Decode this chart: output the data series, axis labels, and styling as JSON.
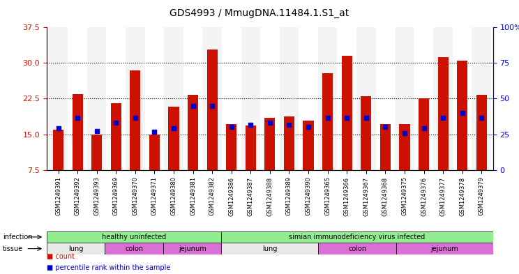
{
  "title": "GDS4993 / MmugDNA.11484.1.S1_at",
  "samples": [
    "GSM1249391",
    "GSM1249392",
    "GSM1249393",
    "GSM1249369",
    "GSM1249370",
    "GSM1249371",
    "GSM1249380",
    "GSM1249381",
    "GSM1249382",
    "GSM1249386",
    "GSM1249387",
    "GSM1249388",
    "GSM1249389",
    "GSM1249390",
    "GSM1249365",
    "GSM1249366",
    "GSM1249367",
    "GSM1249368",
    "GSM1249375",
    "GSM1249376",
    "GSM1249377",
    "GSM1249378",
    "GSM1249379"
  ],
  "counts": [
    16.0,
    23.5,
    14.9,
    21.5,
    28.5,
    15.0,
    20.8,
    23.3,
    32.8,
    17.2,
    16.8,
    18.5,
    18.8,
    17.8,
    27.8,
    31.5,
    23.0,
    17.2,
    17.1,
    22.5,
    31.3,
    30.5,
    23.3
  ],
  "percentiles": [
    16.3,
    18.5,
    15.7,
    17.5,
    18.5,
    15.5,
    16.3,
    21.0,
    21.0,
    16.5,
    17.0,
    17.5,
    17.0,
    16.5,
    18.5,
    18.5,
    18.5,
    16.5,
    15.3,
    16.3,
    18.5,
    19.5,
    18.5
  ],
  "bar_color": "#CC1100",
  "percentile_color": "#0000CC",
  "ylim_left": [
    7.5,
    37.5
  ],
  "ylim_right": [
    0,
    100
  ],
  "yticks_left": [
    7.5,
    15.0,
    22.5,
    30.0,
    37.5
  ],
  "yticks_right": [
    0,
    25,
    50,
    75,
    100
  ],
  "infection_groups": [
    {
      "label": "healthy uninfected",
      "start": 0,
      "end": 9,
      "color": "#90EE90"
    },
    {
      "label": "simian immunodeficiency virus infected",
      "start": 9,
      "end": 23,
      "color": "#90EE90"
    }
  ],
  "tissue_groups": [
    {
      "label": "lung",
      "start": 0,
      "end": 3,
      "color": "#E8E8FF"
    },
    {
      "label": "colon",
      "start": 3,
      "end": 6,
      "color": "#EE82EE"
    },
    {
      "label": "jejunum",
      "start": 6,
      "end": 9,
      "color": "#EE82EE"
    },
    {
      "label": "lung",
      "start": 9,
      "end": 14,
      "color": "#E8E8FF"
    },
    {
      "label": "colon",
      "start": 14,
      "end": 18,
      "color": "#EE82EE"
    },
    {
      "label": "jejunum",
      "start": 18,
      "end": 23,
      "color": "#EE82EE"
    }
  ],
  "bg_color": "#FFFFFF",
  "grid_color": "#000000",
  "left_tick_color": "#CC1100",
  "right_tick_color": "#0000CC"
}
